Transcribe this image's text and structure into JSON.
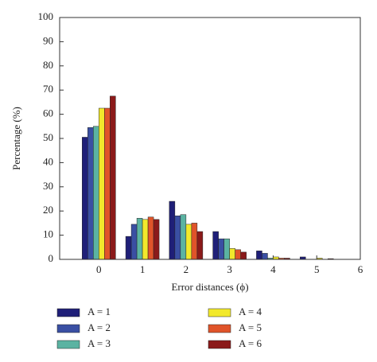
{
  "chart_data": {
    "type": "bar",
    "x_label": "Error distances (ϕ)",
    "y_label": "Percentage (%)",
    "x": [
      0,
      1,
      2,
      3,
      4,
      5
    ],
    "series": [
      {
        "name": "A = 1",
        "color": "#1f1f78",
        "values": [
          50.5,
          9.5,
          24,
          11.5,
          3.5,
          1
        ]
      },
      {
        "name": "A = 2",
        "color": "#3a4fa3",
        "values": [
          54.5,
          14.5,
          18,
          8.5,
          2.5,
          0
        ]
      },
      {
        "name": "A = 3",
        "color": "#5bb3a2",
        "values": [
          55,
          17,
          18.5,
          8.5,
          0.5,
          0
        ]
      },
      {
        "name": "A = 4",
        "color": "#f2e92c",
        "values": [
          62.5,
          16.5,
          14.5,
          4.5,
          1,
          0.5
        ]
      },
      {
        "name": "A = 5",
        "color": "#e0542a",
        "values": [
          62.5,
          17.5,
          15,
          4,
          0.5,
          0
        ]
      },
      {
        "name": "A = 6",
        "color": "#8b1a1a",
        "values": [
          67.5,
          16.5,
          11.5,
          3,
          0.5,
          0.3
        ]
      }
    ],
    "xlim": [
      -0.9,
      6
    ],
    "xticks": [
      0,
      1,
      2,
      3,
      4,
      5,
      6
    ],
    "ylim": [
      0,
      100
    ],
    "yticks": [
      0,
      10,
      20,
      30,
      40,
      50,
      60,
      70,
      80,
      90,
      100
    ]
  }
}
